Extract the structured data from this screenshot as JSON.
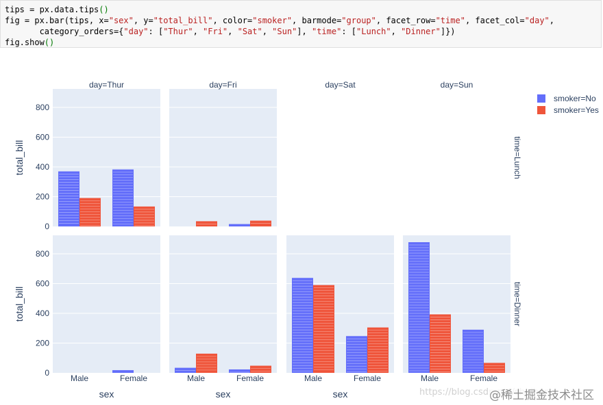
{
  "code": {
    "lines": [
      [
        {
          "t": "tips = px.data.tips",
          "c": ""
        },
        {
          "t": "()",
          "c": "par"
        }
      ],
      [
        {
          "t": "fig = px.bar(tips, x=",
          "c": ""
        },
        {
          "t": "\"sex\"",
          "c": "str"
        },
        {
          "t": ", y=",
          "c": ""
        },
        {
          "t": "\"total_bill\"",
          "c": "str"
        },
        {
          "t": ", color=",
          "c": ""
        },
        {
          "t": "\"smoker\"",
          "c": "str"
        },
        {
          "t": ", barmode=",
          "c": ""
        },
        {
          "t": "\"group\"",
          "c": "str"
        },
        {
          "t": ", facet_row=",
          "c": ""
        },
        {
          "t": "\"time\"",
          "c": "str"
        },
        {
          "t": ", facet_col=",
          "c": ""
        },
        {
          "t": "\"day\"",
          "c": "str"
        },
        {
          "t": ",",
          "c": ""
        }
      ],
      [
        {
          "t": "       category_orders={",
          "c": ""
        },
        {
          "t": "\"day\"",
          "c": "str"
        },
        {
          "t": ": [",
          "c": ""
        },
        {
          "t": "\"Thur\"",
          "c": "str"
        },
        {
          "t": ", ",
          "c": ""
        },
        {
          "t": "\"Fri\"",
          "c": "str"
        },
        {
          "t": ", ",
          "c": ""
        },
        {
          "t": "\"Sat\"",
          "c": "str"
        },
        {
          "t": ", ",
          "c": ""
        },
        {
          "t": "\"Sun\"",
          "c": "str"
        },
        {
          "t": "], ",
          "c": ""
        },
        {
          "t": "\"time\"",
          "c": "str"
        },
        {
          "t": ": [",
          "c": ""
        },
        {
          "t": "\"Lunch\"",
          "c": "str"
        },
        {
          "t": ", ",
          "c": ""
        },
        {
          "t": "\"Dinner\"",
          "c": "str"
        },
        {
          "t": "]})",
          "c": ""
        }
      ],
      [
        {
          "t": "fig.show",
          "c": ""
        },
        {
          "t": "()",
          "c": "par"
        }
      ]
    ]
  },
  "chart_data": {
    "type": "bar",
    "barmode": "group",
    "x_field": "sex",
    "y_field": "total_bill",
    "color_field": "smoker",
    "categories": [
      "Male",
      "Female"
    ],
    "facet_cols": [
      "Thur",
      "Fri",
      "Sat",
      "Sun"
    ],
    "facet_rows": [
      "Lunch",
      "Dinner"
    ],
    "facet_col_titles": [
      "day=Thur",
      "day=Fri",
      "day=Sat",
      "day=Sun"
    ],
    "facet_row_titles": [
      "time=Lunch",
      "time=Dinner"
    ],
    "xlabel": "sex",
    "ylabel": "total_bill",
    "ylim": [
      0,
      900
    ],
    "yticks": [
      0,
      200,
      400,
      600,
      800
    ],
    "series": [
      {
        "name": "No",
        "legend": "smoker=No",
        "color": "#636efa"
      },
      {
        "name": "Yes",
        "legend": "smoker=Yes",
        "color": "#ef553b"
      }
    ],
    "panels": [
      {
        "row": "Lunch",
        "col": "Thur",
        "values": {
          "No": [
            370,
            383
          ],
          "Yes": [
            191,
            134
          ]
        }
      },
      {
        "row": "Lunch",
        "col": "Fri",
        "values": {
          "No": [
            0,
            16
          ],
          "Yes": [
            35,
            39
          ]
        }
      },
      {
        "row": "Lunch",
        "col": "Sat",
        "empty": true
      },
      {
        "row": "Lunch",
        "col": "Sun",
        "empty": true
      },
      {
        "row": "Dinner",
        "col": "Thur",
        "values": {
          "No": [
            0,
            18
          ],
          "Yes": [
            0,
            0
          ]
        }
      },
      {
        "row": "Dinner",
        "col": "Fri",
        "values": {
          "No": [
            34,
            23
          ],
          "Yes": [
            129,
            48
          ]
        }
      },
      {
        "row": "Dinner",
        "col": "Sat",
        "values": {
          "No": [
            638,
            247
          ],
          "Yes": [
            590,
            305
          ]
        }
      },
      {
        "row": "Dinner",
        "col": "Sun",
        "values": {
          "No": [
            878,
            290
          ],
          "Yes": [
            393,
            67
          ]
        }
      }
    ],
    "legend_position": "top-right",
    "plot_bgcolor": "#e5ecf6",
    "gridcolor": "#ffffff"
  },
  "watermark": {
    "url_text": "https://blog.csdn.net/shuihan",
    "site_text": "@稀土掘金技术社区"
  }
}
